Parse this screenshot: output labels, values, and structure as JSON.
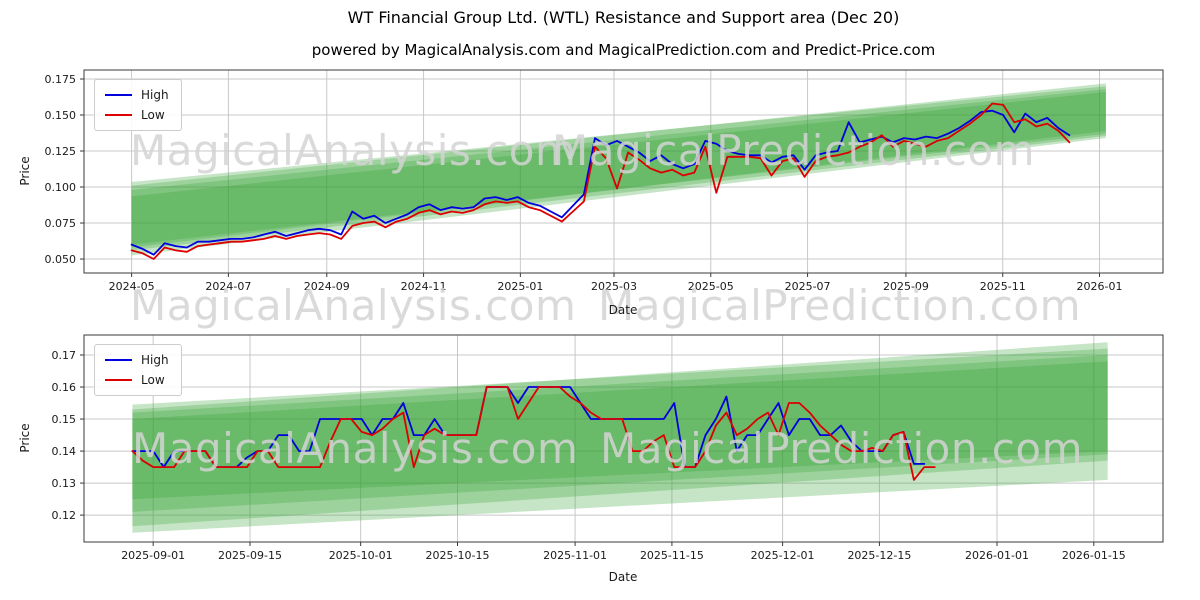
{
  "title": "WT Financial Group Ltd. (WTL) Resistance and Support area (Dec 20)",
  "subtitle": "powered by MagicalAnalysis.com and MagicalPrediction.com and Predict-Price.com",
  "watermarks": {
    "analysis": "MagicalAnalysis.com",
    "prediction": "MagicalPrediction.com"
  },
  "legend": {
    "high_label": "High",
    "low_label": "Low",
    "high_color": "#0000dd",
    "low_color": "#dd0000"
  },
  "colors": {
    "band": "#33a033",
    "grid": "#c8c8c8",
    "spine": "#3a3a3a",
    "tick_text": "#1a1a1a"
  },
  "chart_data": [
    {
      "type": "line",
      "xlabel": "Date",
      "ylabel": "Price",
      "grid": true,
      "legend_position": "upper left",
      "xlim": [
        "2024-04-01",
        "2026-02-10"
      ],
      "ylim": [
        0.0403,
        0.18125
      ],
      "xticks": [
        "2024-05",
        "2024-07",
        "2024-09",
        "2024-11",
        "2025-01",
        "2025-03",
        "2025-05",
        "2025-07",
        "2025-09",
        "2025-11",
        "2026-01"
      ],
      "yticks": [
        0.175,
        0.15,
        0.125,
        0.1,
        0.075,
        0.05
      ],
      "ytick_decimals": 3,
      "data_start": "2024-05-01",
      "data_end": "2025-12-13",
      "series": [
        {
          "name": "High",
          "color": "#0000dd",
          "values": [
            0.06,
            0.057,
            0.053,
            0.061,
            0.059,
            0.058,
            0.062,
            0.062,
            0.063,
            0.064,
            0.064,
            0.065,
            0.067,
            0.069,
            0.066,
            0.068,
            0.07,
            0.071,
            0.07,
            0.067,
            0.083,
            0.078,
            0.08,
            0.075,
            0.078,
            0.081,
            0.086,
            0.088,
            0.084,
            0.086,
            0.085,
            0.086,
            0.092,
            0.093,
            0.091,
            0.093,
            0.089,
            0.087,
            0.083,
            0.079,
            0.087,
            0.095,
            0.134,
            0.129,
            0.132,
            0.128,
            0.124,
            0.118,
            0.122,
            0.116,
            0.113,
            0.116,
            0.132,
            0.13,
            0.125,
            0.123,
            0.122,
            0.122,
            0.117,
            0.121,
            0.122,
            0.112,
            0.122,
            0.124,
            0.125,
            0.145,
            0.131,
            0.133,
            0.135,
            0.131,
            0.134,
            0.133,
            0.135,
            0.134,
            0.137,
            0.141,
            0.146,
            0.152,
            0.153,
            0.15,
            0.138,
            0.151,
            0.145,
            0.148,
            0.141,
            0.136
          ]
        },
        {
          "name": "Low",
          "color": "#dd0000",
          "values": [
            0.056,
            0.054,
            0.05,
            0.058,
            0.056,
            0.055,
            0.059,
            0.06,
            0.061,
            0.062,
            0.062,
            0.063,
            0.064,
            0.066,
            0.064,
            0.066,
            0.067,
            0.068,
            0.067,
            0.064,
            0.073,
            0.075,
            0.076,
            0.072,
            0.076,
            0.078,
            0.082,
            0.084,
            0.081,
            0.083,
            0.082,
            0.084,
            0.088,
            0.09,
            0.089,
            0.09,
            0.086,
            0.084,
            0.08,
            0.076,
            0.083,
            0.09,
            0.128,
            0.12,
            0.099,
            0.124,
            0.119,
            0.113,
            0.11,
            0.112,
            0.108,
            0.11,
            0.128,
            0.096,
            0.121,
            0.121,
            0.121,
            0.12,
            0.108,
            0.118,
            0.12,
            0.107,
            0.118,
            0.121,
            0.122,
            0.124,
            0.128,
            0.131,
            0.136,
            0.128,
            0.132,
            0.13,
            0.128,
            0.132,
            0.134,
            0.139,
            0.144,
            0.15,
            0.158,
            0.157,
            0.145,
            0.147,
            0.142,
            0.144,
            0.139,
            0.131
          ]
        }
      ],
      "bands": [
        {
          "x": [
            "2024-05-01",
            "2026-01-05"
          ],
          "top": [
            0.1035,
            0.17
          ],
          "bottom": [
            0.06,
            0.137
          ]
        },
        {
          "x": [
            "2024-05-01",
            "2026-01-05"
          ],
          "top": [
            0.0935,
            0.166
          ],
          "bottom": [
            0.0525,
            0.134
          ]
        },
        {
          "x": [
            "2024-05-01",
            "2026-01-05"
          ],
          "top": [
            0.098,
            0.168
          ],
          "bottom": [
            0.056,
            0.1355
          ]
        },
        {
          "x": [
            "2024-05-01",
            "2026-01-05"
          ],
          "top": [
            0.101,
            0.172
          ],
          "bottom": [
            0.058,
            0.139
          ]
        }
      ],
      "band_color": "#33a033",
      "band_opacity": 0.28
    },
    {
      "type": "line",
      "xlabel": "Date",
      "ylabel": "Price",
      "grid": true,
      "legend_position": "upper left",
      "xlim": [
        "2025-08-22",
        "2026-01-25"
      ],
      "ylim": [
        0.1116,
        0.17625
      ],
      "xticks": [
        "2025-09-01",
        "2025-09-15",
        "2025-10-01",
        "2025-10-15",
        "2025-11-01",
        "2025-11-15",
        "2025-12-01",
        "2025-12-15",
        "2026-01-01",
        "2026-01-15"
      ],
      "yticks": [
        0.17,
        0.16,
        0.15,
        0.14,
        0.13,
        0.12
      ],
      "ytick_decimals": 2,
      "data_start": "2025-08-29",
      "data_end": "2025-12-23",
      "series": [
        {
          "name": "High",
          "color": "#0000dd",
          "values": [
            0.14,
            0.14,
            0.14,
            0.135,
            0.14,
            0.14,
            0.14,
            0.14,
            0.135,
            0.135,
            0.135,
            0.138,
            0.14,
            0.14,
            0.145,
            0.145,
            0.14,
            0.14,
            0.15,
            0.15,
            0.15,
            0.15,
            0.15,
            0.145,
            0.15,
            0.15,
            0.155,
            0.145,
            0.145,
            0.15,
            0.145,
            0.145,
            0.145,
            0.145,
            0.16,
            0.16,
            0.16,
            0.155,
            0.16,
            0.16,
            0.16,
            0.16,
            0.16,
            0.155,
            0.15,
            0.15,
            0.15,
            0.15,
            0.15,
            0.15,
            0.15,
            0.15,
            0.155,
            0.135,
            0.135,
            0.145,
            0.15,
            0.157,
            0.14,
            0.145,
            0.145,
            0.15,
            0.155,
            0.145,
            0.15,
            0.15,
            0.145,
            0.145,
            0.148,
            0.143,
            0.14,
            0.14,
            0.14,
            0.145,
            0.146,
            0.136,
            0.136,
            null
          ]
        },
        {
          "name": "Low",
          "color": "#dd0000",
          "values": [
            0.14,
            0.137,
            0.135,
            0.135,
            0.135,
            0.14,
            0.14,
            0.14,
            0.135,
            0.135,
            0.135,
            0.135,
            0.14,
            0.14,
            0.135,
            0.135,
            0.135,
            0.135,
            0.135,
            0.143,
            0.15,
            0.15,
            0.146,
            0.145,
            0.147,
            0.15,
            0.152,
            0.135,
            0.145,
            0.147,
            0.145,
            0.145,
            0.145,
            0.145,
            0.16,
            0.16,
            0.16,
            0.15,
            0.155,
            0.16,
            0.16,
            0.16,
            0.157,
            0.155,
            0.152,
            0.15,
            0.15,
            0.15,
            0.14,
            0.14,
            0.143,
            0.145,
            0.135,
            0.135,
            0.135,
            0.14,
            0.148,
            0.152,
            0.145,
            0.147,
            0.15,
            0.152,
            0.145,
            0.155,
            0.155,
            0.152,
            0.148,
            0.145,
            0.142,
            0.14,
            0.14,
            0.141,
            0.14,
            0.145,
            0.146,
            0.131,
            0.135,
            0.135
          ]
        }
      ],
      "bands": [
        {
          "x": [
            "2025-08-29",
            "2026-01-17"
          ],
          "top": [
            0.1545,
            0.172
          ],
          "bottom": [
            0.1165,
            0.137
          ]
        },
        {
          "x": [
            "2025-08-29",
            "2026-01-17"
          ],
          "top": [
            0.15,
            0.168
          ],
          "bottom": [
            0.121,
            0.139
          ]
        },
        {
          "x": [
            "2025-08-29",
            "2026-01-17"
          ],
          "top": [
            0.152,
            0.17
          ],
          "bottom": [
            0.1145,
            0.131
          ]
        },
        {
          "x": [
            "2025-08-29",
            "2026-01-17"
          ],
          "top": [
            0.153,
            0.174
          ],
          "bottom": [
            0.125,
            0.14
          ]
        }
      ],
      "band_color": "#33a033",
      "band_opacity": 0.28
    }
  ]
}
